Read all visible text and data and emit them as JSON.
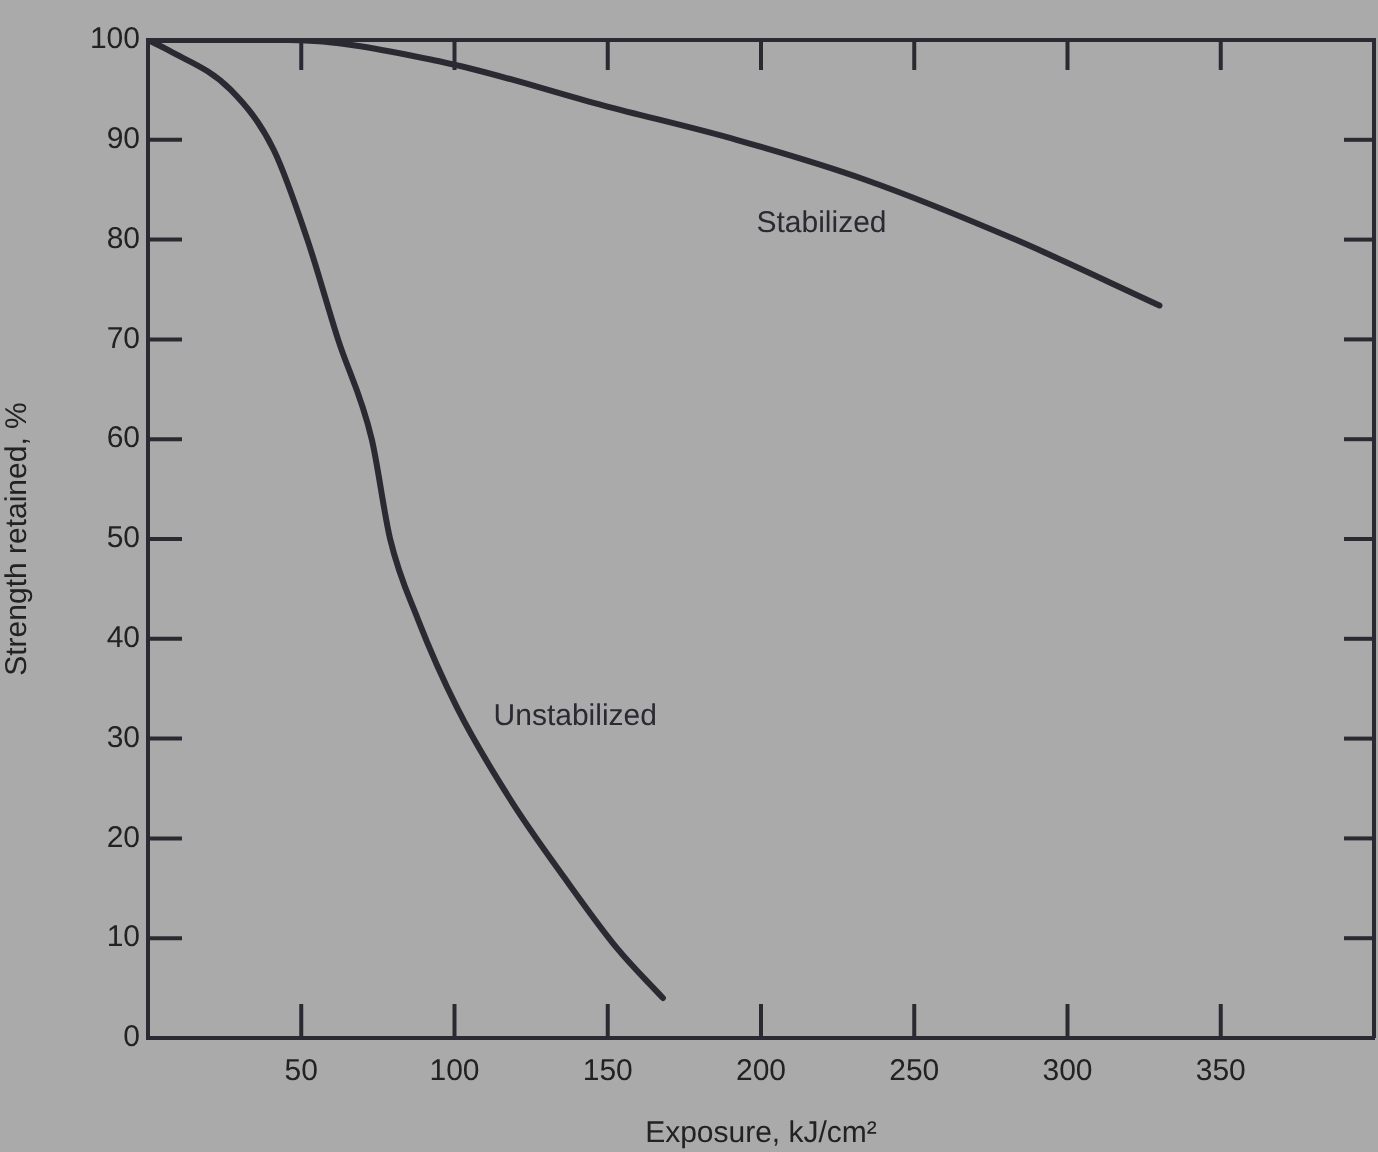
{
  "chart_data": {
    "type": "line",
    "xlabel": "Exposure, kJ/cm²",
    "ylabel": "Strength retained, %",
    "xlim": [
      0,
      400
    ],
    "xticks": [
      50,
      100,
      150,
      200,
      250,
      300,
      350
    ],
    "ylim": [
      0,
      100
    ],
    "yticks": [
      0,
      10,
      20,
      30,
      40,
      50,
      60,
      70,
      80,
      90,
      100
    ],
    "grid": false,
    "legend": false,
    "marker": "none",
    "line_style": "solid",
    "series": [
      {
        "name": "Stabilized",
        "color": "#2b2a33",
        "x": [
          0,
          46,
          96,
          149,
          192,
          234,
          283,
          330
        ],
        "values": [
          100,
          100,
          97.8,
          93.4,
          90,
          86,
          80,
          73.4
        ]
      },
      {
        "name": "Unstabilized",
        "color": "#2b2a33",
        "x": [
          0,
          6.5,
          27,
          41,
          52,
          62,
          73,
          79,
          88,
          101,
          118,
          136,
          153,
          168
        ],
        "values": [
          100,
          99,
          95,
          89,
          80,
          70,
          60,
          50,
          42,
          33,
          24,
          16,
          9,
          4
        ]
      }
    ]
  }
}
